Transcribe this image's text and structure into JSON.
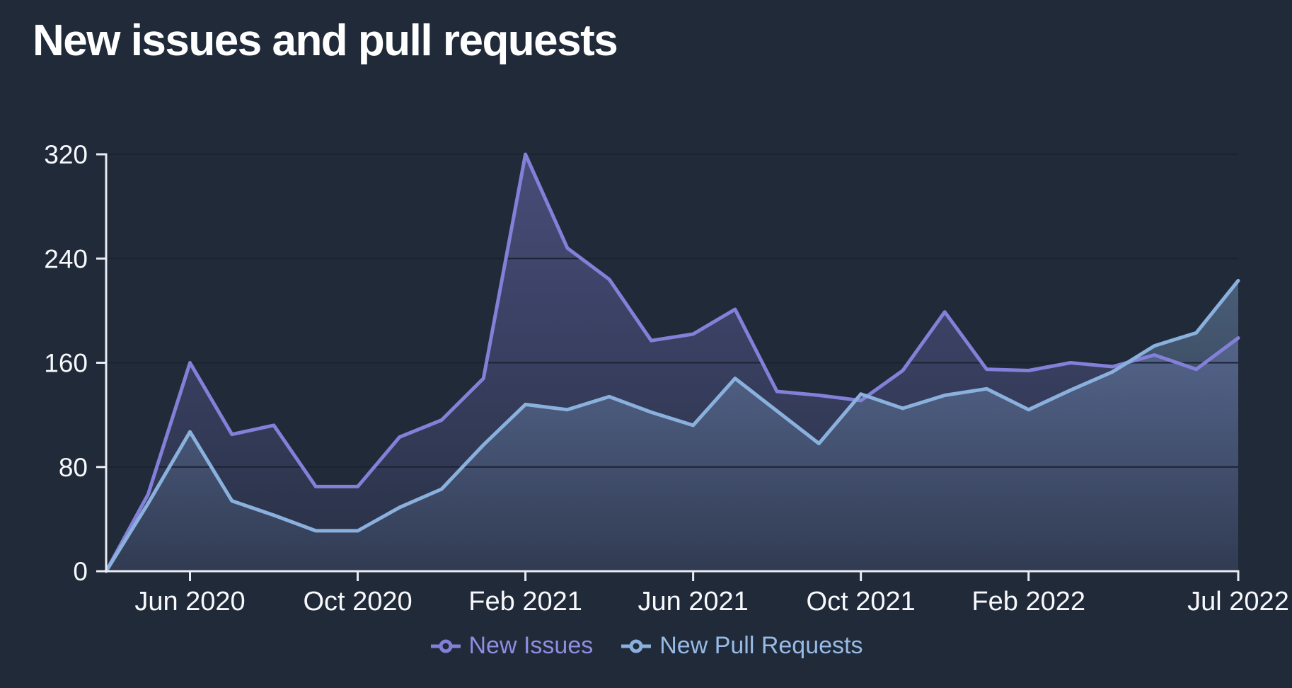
{
  "title": "New issues and pull requests",
  "colors": {
    "background": "#212a39",
    "axis": "#e9ecf2",
    "grid": "#1b2331",
    "tick_label": "#f7f9fc",
    "issues_line": "#8280d8",
    "pulls_line": "#8ab1dd"
  },
  "chart_data": {
    "type": "area",
    "title": "New issues and pull requests",
    "xlabel": "",
    "ylabel": "",
    "ylim": [
      0,
      320
    ],
    "y_ticks": [
      0,
      80,
      160,
      240,
      320
    ],
    "grid": "horizontal",
    "legend_position": "bottom",
    "x": [
      "Apr 2020",
      "May 2020",
      "Jun 2020",
      "Jul 2020",
      "Aug 2020",
      "Sep 2020",
      "Oct 2020",
      "Nov 2020",
      "Dec 2020",
      "Jan 2021",
      "Feb 2021",
      "Mar 2021",
      "Apr 2021",
      "May 2021",
      "Jun 2021",
      "Jul 2021",
      "Aug 2021",
      "Sep 2021",
      "Oct 2021",
      "Nov 2021",
      "Dec 2021",
      "Jan 2022",
      "Feb 2022",
      "Mar 2022",
      "Apr 2022",
      "May 2022",
      "Jun 2022",
      "Jul 2022"
    ],
    "x_ticks": [
      {
        "index": 2,
        "label": "Jun 2020"
      },
      {
        "index": 6,
        "label": "Oct 2020"
      },
      {
        "index": 10,
        "label": "Feb 2021"
      },
      {
        "index": 14,
        "label": "Jun 2021"
      },
      {
        "index": 18,
        "label": "Oct 2021"
      },
      {
        "index": 22,
        "label": "Feb 2022"
      },
      {
        "index": 27,
        "label": "Jul 2022"
      }
    ],
    "series": [
      {
        "name": "New Issues",
        "color": "#8280d8",
        "values": [
          0,
          59,
          160,
          105,
          112,
          65,
          65,
          103,
          116,
          148,
          320,
          248,
          224,
          177,
          182,
          201,
          138,
          135,
          131,
          154,
          199,
          155,
          154,
          160,
          157,
          166,
          155,
          179
        ]
      },
      {
        "name": "New Pull Requests",
        "color": "#8ab1dd",
        "values": [
          0,
          52,
          107,
          54,
          43,
          31,
          31,
          49,
          63,
          97,
          128,
          124,
          134,
          122,
          112,
          148,
          123,
          98,
          136,
          125,
          135,
          140,
          124,
          139,
          153,
          173,
          183,
          223
        ]
      }
    ]
  }
}
